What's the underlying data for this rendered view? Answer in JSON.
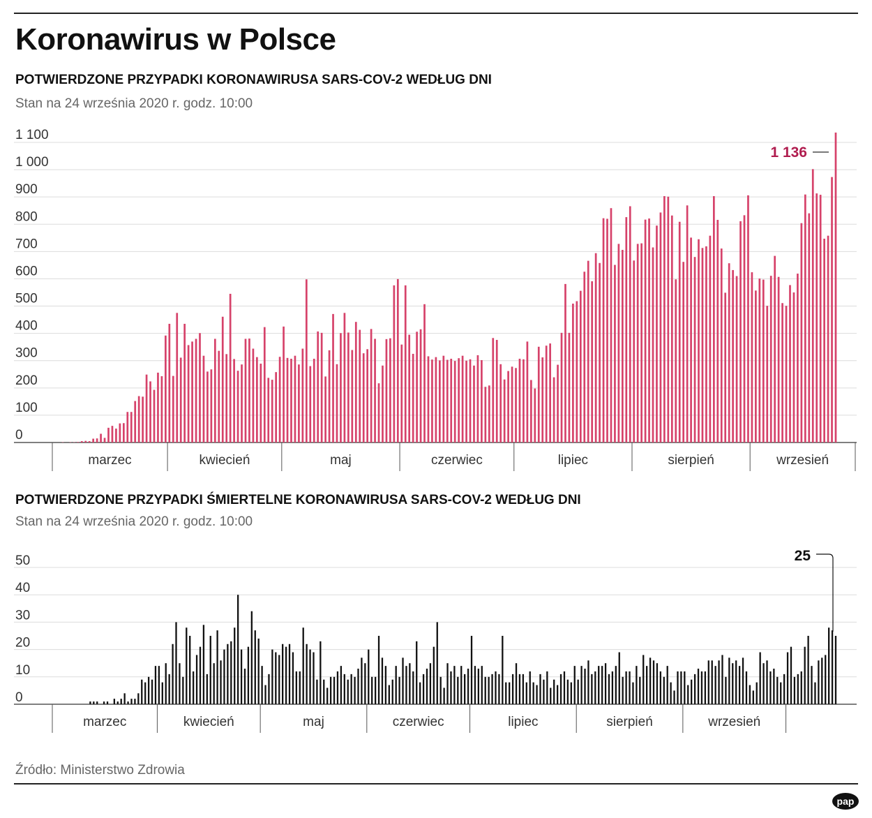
{
  "title": "Koronawirus w Polsce",
  "source": "Źródło: Ministerstwo Zdrowia",
  "logo_text": "pap",
  "colors": {
    "cases": "#d6426a",
    "deaths": "#111111",
    "highlight": "#b01d4f"
  },
  "chart_data": [
    {
      "type": "bar",
      "title": "POTWIERDZONE PRZYPADKI KORONAWIRUSA SARS-COV-2 WEDŁUG DNI",
      "subtitle": "Stan na 24 września 2020 r. godz. 10:00",
      "xlabel": "",
      "ylabel": "",
      "ylim": [
        0,
        1100
      ],
      "yticks": [
        0,
        100,
        200,
        300,
        400,
        500,
        600,
        700,
        800,
        900,
        1000,
        1100
      ],
      "ytick_labels": [
        "0",
        "100",
        "200",
        "300",
        "400",
        "500",
        "600",
        "700",
        "800",
        "900",
        "1 000",
        "1 100"
      ],
      "months": [
        "marzec",
        "kwiecień",
        "maj",
        "czerwiec",
        "lipiec",
        "sierpień",
        "wrzesień"
      ],
      "x_start": "2020-03-04",
      "values": [
        1,
        0,
        1,
        1,
        2,
        5,
        6,
        5,
        14,
        15,
        32,
        17,
        54,
        61,
        51,
        70,
        71,
        112,
        112,
        152,
        170,
        168,
        249,
        224,
        193,
        256,
        243,
        392,
        435,
        244,
        475,
        311,
        435,
        357,
        370,
        380,
        401,
        318,
        260,
        268,
        380,
        336,
        461,
        324,
        545,
        306,
        263,
        286,
        380,
        381,
        344,
        313,
        289,
        423,
        237,
        230,
        258,
        314,
        425,
        310,
        307,
        318,
        286,
        344,
        598,
        280,
        307,
        407,
        402,
        242,
        338,
        471,
        287,
        401,
        475,
        403,
        339,
        442,
        413,
        327,
        342,
        416,
        380,
        217,
        282,
        379,
        382,
        576,
        599,
        359,
        576,
        395,
        325,
        406,
        415,
        507,
        316,
        304,
        313,
        301,
        318,
        303,
        307,
        299,
        309,
        318,
        300,
        305,
        282,
        320,
        302,
        204,
        209,
        383,
        376,
        287,
        231,
        262,
        278,
        273,
        307,
        305,
        370,
        229,
        198,
        351,
        312,
        355,
        363,
        239,
        285,
        402,
        581,
        402,
        509,
        518,
        556,
        626,
        666,
        591,
        694,
        658,
        822,
        820,
        859,
        651,
        728,
        706,
        826,
        866,
        667,
        728,
        730,
        817,
        821,
        715,
        795,
        843,
        903,
        901,
        832,
        598,
        809,
        662,
        869,
        751,
        680,
        745,
        713,
        719,
        758,
        903,
        816,
        711,
        549,
        657,
        632,
        610,
        811,
        833,
        906,
        624,
        557,
        601,
        597,
        501,
        611,
        684,
        607,
        511,
        501,
        577,
        550,
        619,
        804,
        909,
        840,
        1002,
        913,
        908,
        747,
        758,
        973,
        1136
      ],
      "highlight": {
        "label": "1 136",
        "value": 1136
      }
    },
    {
      "type": "bar",
      "title": "POTWIERDZONE PRZYPADKI ŚMIERTELNE KORONAWIRUSA SARS-COV-2 WEDŁUG DNI",
      "subtitle": "Stan na 24 września 2020 r. godz. 10:00",
      "xlabel": "",
      "ylabel": "",
      "ylim": [
        0,
        50
      ],
      "yticks": [
        0,
        10,
        20,
        30,
        40,
        50
      ],
      "ytick_labels": [
        "0",
        "10",
        "20",
        "30",
        "40",
        "50"
      ],
      "months": [
        "marzec",
        "kwiecień",
        "maj",
        "czerwiec",
        "lipiec",
        "sierpień",
        "wrzesień"
      ],
      "x_start": "2020-03-04",
      "values": [
        0,
        0,
        0,
        0,
        0,
        0,
        0,
        0,
        1,
        1,
        1,
        0,
        1,
        1,
        0,
        2,
        1,
        2,
        4,
        1,
        2,
        2,
        4,
        9,
        8,
        10,
        9,
        14,
        14,
        8,
        15,
        11,
        22,
        30,
        15,
        10,
        28,
        25,
        12,
        18,
        21,
        29,
        11,
        25,
        15,
        27,
        16,
        20,
        22,
        23,
        28,
        40,
        20,
        13,
        21,
        34,
        27,
        24,
        14,
        7,
        11,
        20,
        19,
        18,
        22,
        21,
        22,
        19,
        12,
        12,
        28,
        22,
        20,
        19,
        9,
        23,
        9,
        6,
        10,
        10,
        12,
        14,
        11,
        9,
        11,
        10,
        13,
        17,
        15,
        20,
        10,
        10,
        25,
        17,
        14,
        7,
        9,
        14,
        10,
        17,
        14,
        15,
        12,
        23,
        8,
        11,
        13,
        15,
        21,
        30,
        10,
        6,
        15,
        12,
        14,
        10,
        14,
        11,
        13,
        25,
        14,
        13,
        14,
        10,
        10,
        11,
        12,
        11,
        25,
        8,
        8,
        11,
        15,
        11,
        11,
        8,
        12,
        8,
        7,
        11,
        9,
        12,
        6,
        9,
        7,
        11,
        12,
        9,
        8,
        14,
        9,
        14,
        13,
        16,
        11,
        12,
        14,
        14,
        15,
        11,
        12,
        14,
        19,
        10,
        12,
        12,
        8,
        14,
        10,
        18,
        14,
        17,
        16,
        15,
        12,
        10,
        14,
        8,
        5,
        12,
        12,
        12,
        7,
        9,
        11,
        13,
        12,
        12,
        16,
        16,
        14,
        16,
        18,
        10,
        17,
        15,
        16,
        14,
        17,
        12,
        7,
        5,
        8,
        19,
        15,
        16,
        12,
        13,
        10,
        8,
        11,
        19,
        21,
        10,
        11,
        12,
        21,
        25,
        14,
        8,
        16,
        17,
        18,
        28,
        27,
        25
      ],
      "highlight": {
        "label": "25",
        "value": 25
      }
    }
  ]
}
